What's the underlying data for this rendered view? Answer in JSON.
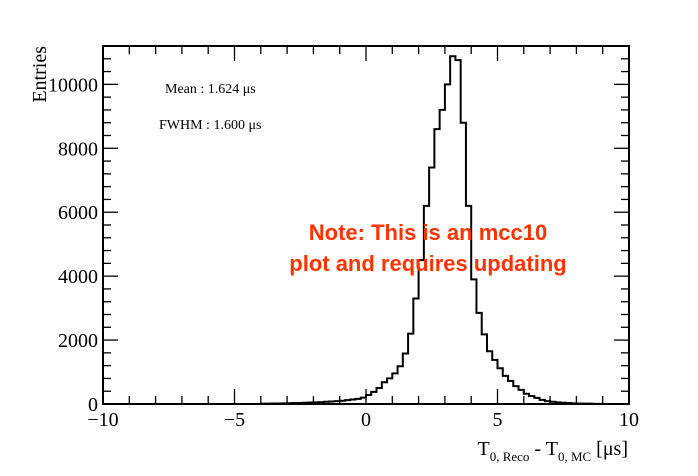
{
  "chart_data": {
    "type": "histogram",
    "xlabel_main_1": "T",
    "xlabel_sub_1": "0, Reco",
    "xlabel_mid": " - T",
    "xlabel_sub_2": "0, MC",
    "xlabel_unit": " [μs]",
    "ylabel": "Entries",
    "xlim": [
      -10,
      10
    ],
    "ylim": [
      0,
      11200
    ],
    "x_ticks": [
      -10,
      -5,
      0,
      5,
      10
    ],
    "x_tick_labels": [
      "−10",
      "−5",
      "0",
      "5",
      "10"
    ],
    "y_ticks": [
      0,
      2000,
      4000,
      6000,
      8000,
      10000
    ],
    "y_tick_labels": [
      "0",
      "2000",
      "4000",
      "6000",
      "8000",
      "10000"
    ],
    "annotations": {
      "mean": "Mean : 1.624 μs",
      "fwhm": "FWHM : 1.600 μs",
      "note_line1": "Note: This is an mcc10",
      "note_line2": "plot and requires updating"
    },
    "note_color": "#ff3300",
    "line_color": "#000000",
    "bin_edges_start": -10,
    "bin_width": 0.2,
    "counts": [
      0,
      0,
      0,
      0,
      0,
      0,
      0,
      0,
      0,
      0,
      0,
      0,
      0,
      0,
      0,
      0,
      0,
      0,
      0,
      0,
      0,
      0,
      0,
      0,
      0,
      0,
      0,
      0,
      0,
      0,
      10,
      10,
      15,
      15,
      20,
      25,
      30,
      30,
      40,
      45,
      50,
      60,
      70,
      80,
      90,
      100,
      120,
      140,
      160,
      200,
      280,
      380,
      500,
      680,
      800,
      960,
      1180,
      1580,
      2200,
      3300,
      4500,
      6200,
      7400,
      8600,
      9200,
      10000,
      10880,
      10760,
      8800,
      6200,
      3900,
      2850,
      2180,
      1650,
      1380,
      1120,
      880,
      720,
      560,
      440,
      320,
      250,
      190,
      130,
      90,
      70,
      50,
      40,
      30,
      20,
      15,
      10,
      10,
      5,
      5,
      0,
      0,
      0,
      0,
      0
    ]
  }
}
